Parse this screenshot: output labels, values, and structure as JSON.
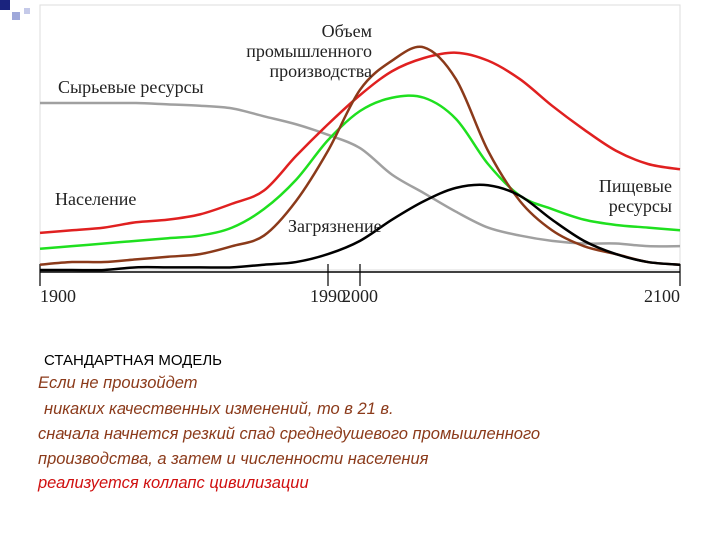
{
  "chart_data": {
    "type": "line",
    "x": [
      1900,
      1910,
      1920,
      1930,
      1940,
      1950,
      1960,
      1970,
      1980,
      1990,
      2000,
      2010,
      2020,
      2030,
      2040,
      2050,
      2060,
      2070,
      2080,
      2090,
      2100
    ],
    "xlim": [
      1900,
      2100
    ],
    "xticks": [
      1900,
      1990,
      2000,
      2100
    ],
    "ylim": [
      0,
      100
    ],
    "series": [
      {
        "name": [
          "Сырьевые ресурсы"
        ],
        "color": "#a0a0a0",
        "values": [
          63,
          63,
          63,
          63,
          62.5,
          62,
          61,
          58,
          55,
          51,
          46,
          36,
          29,
          22,
          16,
          13,
          11,
          10,
          10,
          9,
          9
        ]
      },
      {
        "name": [
          "Население"
        ],
        "color": "#e02020",
        "values": [
          14,
          15,
          16,
          18,
          19,
          21,
          25,
          30,
          43,
          55,
          66,
          75,
          80,
          82,
          79,
          72,
          62,
          53,
          45,
          40,
          38
        ]
      },
      {
        "name": [
          "Пищевые",
          "ресурсы"
        ],
        "color": "#1fe01f",
        "values": [
          8,
          9,
          10,
          11,
          12,
          13,
          16,
          23,
          34,
          49,
          60,
          65,
          65,
          57,
          40,
          28,
          23,
          19,
          17,
          16,
          15
        ]
      },
      {
        "name": [
          "Объем",
          "промышленного",
          "производства"
        ],
        "color": "#8b3a1a",
        "values": [
          2,
          3,
          3,
          4,
          5,
          6,
          9,
          13,
          26,
          45,
          68,
          79,
          84,
          72,
          45,
          26,
          15,
          9,
          6,
          3,
          2
        ]
      },
      {
        "name": [
          "Загрязнение"
        ],
        "color": "#000000",
        "values": [
          0,
          0,
          0,
          1,
          1,
          1,
          1,
          2,
          3,
          6,
          11,
          19,
          26,
          31,
          32,
          28,
          19,
          11,
          6,
          3,
          2
        ]
      }
    ]
  },
  "caption": {
    "heading": "СТАНДАРТНАЯ МОДЕЛЬ",
    "lines": [
      "Если не произойдет",
      "никаких качественных изменений, то в 21 в.",
      "сначала начнется резкий спад среднедушевого промышленного",
      "производства, а затем и численности населения",
      "реализуется коллапс цивилизации"
    ]
  }
}
